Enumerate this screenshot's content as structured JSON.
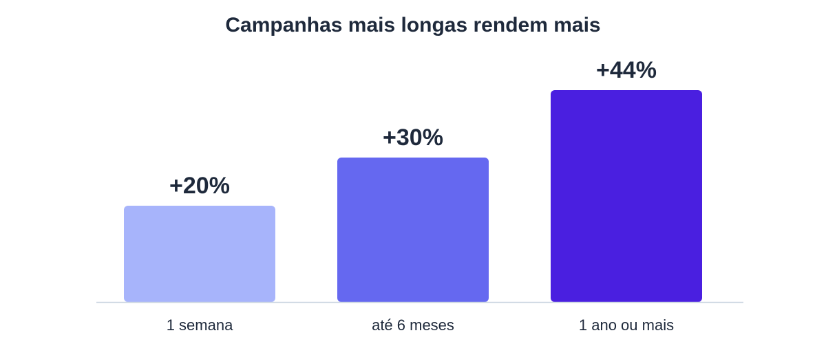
{
  "chart_data": {
    "type": "bar",
    "title": "Campanhas mais longas rendem mais",
    "categories": [
      "1 semana",
      "até 6 meses",
      "1 ano ou mais"
    ],
    "values": [
      20,
      30,
      44
    ],
    "value_labels": [
      "+20%",
      "+30%",
      "+44%"
    ],
    "colors": [
      "#a7b4fb",
      "#6568f0",
      "#4a1fe0"
    ],
    "ylim": [
      0,
      50
    ],
    "grid": false,
    "baseline_color": "#cbd5e1"
  }
}
